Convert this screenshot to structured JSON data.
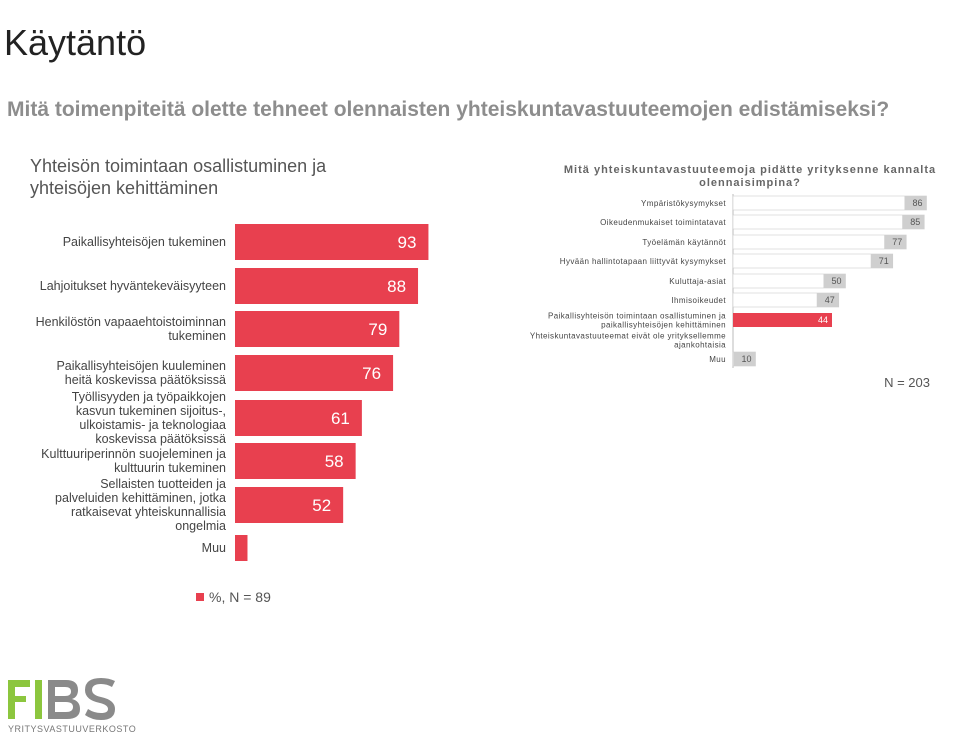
{
  "page": {
    "title": "Käytäntö",
    "question": "Mitä toimenpiteitä olette tehneet olennaisten yhteiskuntavastuuteemojen edistämiseksi?"
  },
  "colors": {
    "left_bar": "#e8404f",
    "right_bar": "#e8404f",
    "right_label_bg": "#cfcfcf",
    "title": "#222222",
    "question": "#8d8d8d"
  },
  "chart_data": [
    {
      "type": "bar",
      "orientation": "horizontal",
      "title": "Yhteisön toimintaan osallistuminen ja yhteisöjen kehittäminen",
      "categories": [
        "Paikallisyhteisöjen tukeminen",
        "Lahjoitukset hyväntekeväisyyteen",
        "Henkilöstön vapaaehtoistoiminnan tukeminen",
        "Paikallisyhteisöjen kuuleminen heitä koskevissa päätöksissä",
        "Työllisyyden ja työpaikkojen kasvun tukeminen sijoitus-, ulkoistamis- ja teknologiaa koskevissa päätöksissä",
        "Kulttuuriperinnön suojeleminen ja kulttuurin tukeminen",
        "Sellaisten tuotteiden ja palveluiden kehittäminen, jotka ratkaisevat yhteiskunnallisia ongelmia",
        "Muu"
      ],
      "values": [
        93,
        88,
        79,
        76,
        61,
        58,
        52,
        6
      ],
      "xlim": [
        0,
        100
      ],
      "legend": "%, N = 89"
    },
    {
      "type": "bar",
      "orientation": "horizontal",
      "title": "Mitä yhteiskuntavastuuteemoja pidätte yrityksenne kannalta olennaisimpina?",
      "categories": [
        "Ympäristökysymykset",
        "Oikeudenmukaiset toimintatavat",
        "Työelämän käytännöt",
        "Hyvään hallintotapaan liittyvät kysymykset",
        "Kuluttaja-asiat",
        "Ihmisoikeudet",
        "Paikallisyhteisön toimintaan osallistuminen ja paikallisyhteisöjen kehittäminen",
        "Yhteiskuntavastuuteemat eivät ole yrityksellemme ajankohtaisia",
        "Muu"
      ],
      "values": [
        86,
        85,
        77,
        71,
        50,
        47,
        44,
        null,
        10
      ],
      "xlim": [
        0,
        100
      ],
      "note": "N = 203"
    }
  ],
  "logo": {
    "text": "FIBS",
    "subtitle": "YRITYSVASTUUVERKOSTO"
  }
}
